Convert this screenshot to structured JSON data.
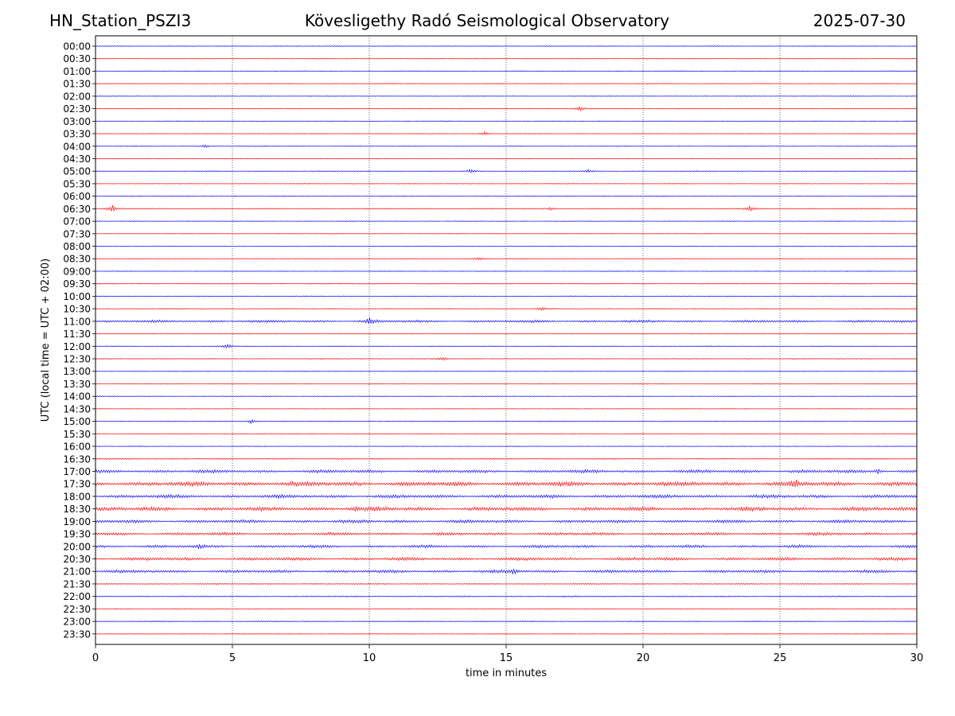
{
  "header": {
    "station": "HN_Station_PSZI3",
    "observatory": "Kövesligethy Radó Seismological Observatory",
    "date": "2025-07-30"
  },
  "chart_data": {
    "type": "line",
    "title": "Kövesligethy Radó Seismological Observatory",
    "xlabel": "time in minutes",
    "ylabel": "UTC (local time = UTC + 02:00)",
    "xlim": [
      0,
      30
    ],
    "x_ticks": [
      0,
      5,
      10,
      15,
      20,
      25,
      30
    ],
    "x_tick_labels": [
      "0",
      "5",
      "10",
      "15",
      "20",
      "25",
      "30"
    ],
    "grid": "vertical-dotted",
    "series_colors": [
      "#0000ff",
      "#ff0000"
    ],
    "axis_color": "#000000",
    "rows": [
      {
        "label": "00:00",
        "activity": 0.1
      },
      {
        "label": "00:30",
        "activity": 0.08
      },
      {
        "label": "01:00",
        "activity": 0.12
      },
      {
        "label": "01:30",
        "activity": 0.08
      },
      {
        "label": "02:00",
        "activity": 0.08
      },
      {
        "label": "02:30",
        "activity": 0.1,
        "events": [
          {
            "t": 17.7,
            "amp": 3
          }
        ]
      },
      {
        "label": "03:00",
        "activity": 0.08
      },
      {
        "label": "03:30",
        "activity": 0.08,
        "events": [
          {
            "t": 14.2,
            "amp": 2
          }
        ]
      },
      {
        "label": "04:00",
        "activity": 0.1,
        "events": [
          {
            "t": 4.0,
            "amp": 2
          }
        ]
      },
      {
        "label": "04:30",
        "activity": 0.08
      },
      {
        "label": "05:00",
        "activity": 0.1,
        "events": [
          {
            "t": 13.7,
            "amp": 3
          },
          {
            "t": 18.0,
            "amp": 2
          }
        ]
      },
      {
        "label": "05:30",
        "activity": 0.08
      },
      {
        "label": "06:00",
        "activity": 0.1
      },
      {
        "label": "06:30",
        "activity": 0.15,
        "events": [
          {
            "t": 0.6,
            "amp": 5
          },
          {
            "t": 16.6,
            "amp": 2
          },
          {
            "t": 23.9,
            "amp": 3
          }
        ]
      },
      {
        "label": "07:00",
        "activity": 0.08
      },
      {
        "label": "07:30",
        "activity": 0.08
      },
      {
        "label": "08:00",
        "activity": 0.08
      },
      {
        "label": "08:30",
        "activity": 0.1,
        "events": [
          {
            "t": 14.0,
            "amp": 2
          }
        ]
      },
      {
        "label": "09:00",
        "activity": 0.1
      },
      {
        "label": "09:30",
        "activity": 0.1
      },
      {
        "label": "10:00",
        "activity": 0.12
      },
      {
        "label": "10:30",
        "activity": 0.15,
        "events": [
          {
            "t": 16.3,
            "amp": 2
          }
        ]
      },
      {
        "label": "11:00",
        "activity": 0.35,
        "events": [
          {
            "t": 10.0,
            "amp": 4
          }
        ]
      },
      {
        "label": "11:30",
        "activity": 0.1
      },
      {
        "label": "12:00",
        "activity": 0.15,
        "events": [
          {
            "t": 4.8,
            "amp": 3
          }
        ]
      },
      {
        "label": "12:30",
        "activity": 0.15,
        "events": [
          {
            "t": 12.7,
            "amp": 2
          }
        ]
      },
      {
        "label": "13:00",
        "activity": 0.08
      },
      {
        "label": "13:30",
        "activity": 0.08
      },
      {
        "label": "14:00",
        "activity": 0.1
      },
      {
        "label": "14:30",
        "activity": 0.08
      },
      {
        "label": "15:00",
        "activity": 0.1,
        "events": [
          {
            "t": 5.7,
            "amp": 3
          }
        ]
      },
      {
        "label": "15:30",
        "activity": 0.08
      },
      {
        "label": "16:00",
        "activity": 0.08
      },
      {
        "label": "16:30",
        "activity": 0.2
      },
      {
        "label": "17:00",
        "activity": 0.5,
        "events": [
          {
            "t": 28.6,
            "amp": 3
          }
        ]
      },
      {
        "label": "17:30",
        "activity": 0.8,
        "events": [
          {
            "t": 25.6,
            "amp": 4
          }
        ]
      },
      {
        "label": "18:00",
        "activity": 0.55
      },
      {
        "label": "18:30",
        "activity": 0.7,
        "events": [
          {
            "t": 9.5,
            "amp": 3
          }
        ]
      },
      {
        "label": "19:00",
        "activity": 0.5
      },
      {
        "label": "19:30",
        "activity": 0.45
      },
      {
        "label": "20:00",
        "activity": 0.4,
        "events": [
          {
            "t": 3.8,
            "amp": 2
          }
        ]
      },
      {
        "label": "20:30",
        "activity": 0.5
      },
      {
        "label": "21:00",
        "activity": 0.45,
        "events": [
          {
            "t": 15.3,
            "amp": 3
          }
        ]
      },
      {
        "label": "21:30",
        "activity": 0.2
      },
      {
        "label": "22:00",
        "activity": 0.25
      },
      {
        "label": "22:30",
        "activity": 0.12
      },
      {
        "label": "23:00",
        "activity": 0.2
      },
      {
        "label": "23:30",
        "activity": 0.1
      }
    ]
  }
}
